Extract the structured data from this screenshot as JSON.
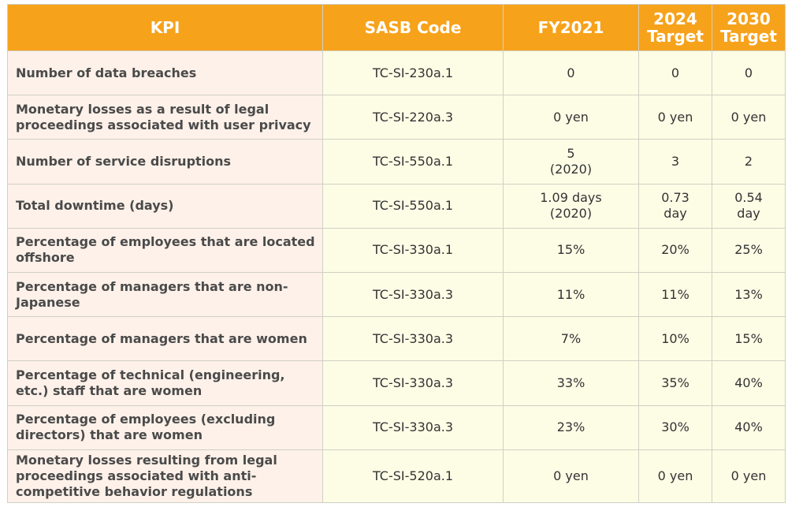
{
  "table": {
    "headers": {
      "kpi": "KPI",
      "sasb_code": "SASB Code",
      "fy2021": "FY2021",
      "target_2024": "2024\nTarget",
      "target_2030": "2030\nTarget"
    },
    "rows": [
      {
        "kpi": "Number of data breaches",
        "sasb": "TC-SI-230a.1",
        "fy2021": "0",
        "t2024": "0",
        "t2030": "0"
      },
      {
        "kpi": "Monetary losses as a result of legal proceedings associated with user privacy",
        "sasb": "TC-SI-220a.3",
        "fy2021": "0 yen",
        "t2024": "0 yen",
        "t2030": "0 yen"
      },
      {
        "kpi": "Number of service disruptions",
        "sasb": "TC-SI-550a.1",
        "fy2021": "5\n(2020)",
        "t2024": "3",
        "t2030": "2"
      },
      {
        "kpi": "Total downtime (days)",
        "sasb": "TC-SI-550a.1",
        "fy2021": "1.09 days\n(2020)",
        "t2024": "0.73\nday",
        "t2030": "0.54\nday"
      },
      {
        "kpi": "Percentage of employees that are located offshore",
        "sasb": "TC-SI-330a.1",
        "fy2021": "15%",
        "t2024": "20%",
        "t2030": "25%"
      },
      {
        "kpi": "Percentage of managers that are non-Japanese",
        "sasb": "TC-SI-330a.3",
        "fy2021": "11%",
        "t2024": "11%",
        "t2030": "13%"
      },
      {
        "kpi": "Percentage of managers that are women",
        "sasb": "TC-SI-330a.3",
        "fy2021": "7%",
        "t2024": "10%",
        "t2030": "15%"
      },
      {
        "kpi": "Percentage of technical (engineering, etc.) staff that are women",
        "sasb": "TC-SI-330a.3",
        "fy2021": "33%",
        "t2024": "35%",
        "t2030": "40%"
      },
      {
        "kpi": "Percentage of employees (excluding directors) that are women",
        "sasb": "TC-SI-330a.3",
        "fy2021": "23%",
        "t2024": "30%",
        "t2030": "40%"
      },
      {
        "kpi": "Monetary losses resulting from legal proceedings associated with anti-competitive behavior regulations",
        "sasb": "TC-SI-520a.1",
        "fy2021": "0 yen",
        "t2024": "0 yen",
        "t2030": "0 yen"
      }
    ]
  },
  "colors": {
    "header_bg": "#f7a21b",
    "kpi_col_bg": "#fdf1e9",
    "value_col_bg": "#fdfde6"
  }
}
